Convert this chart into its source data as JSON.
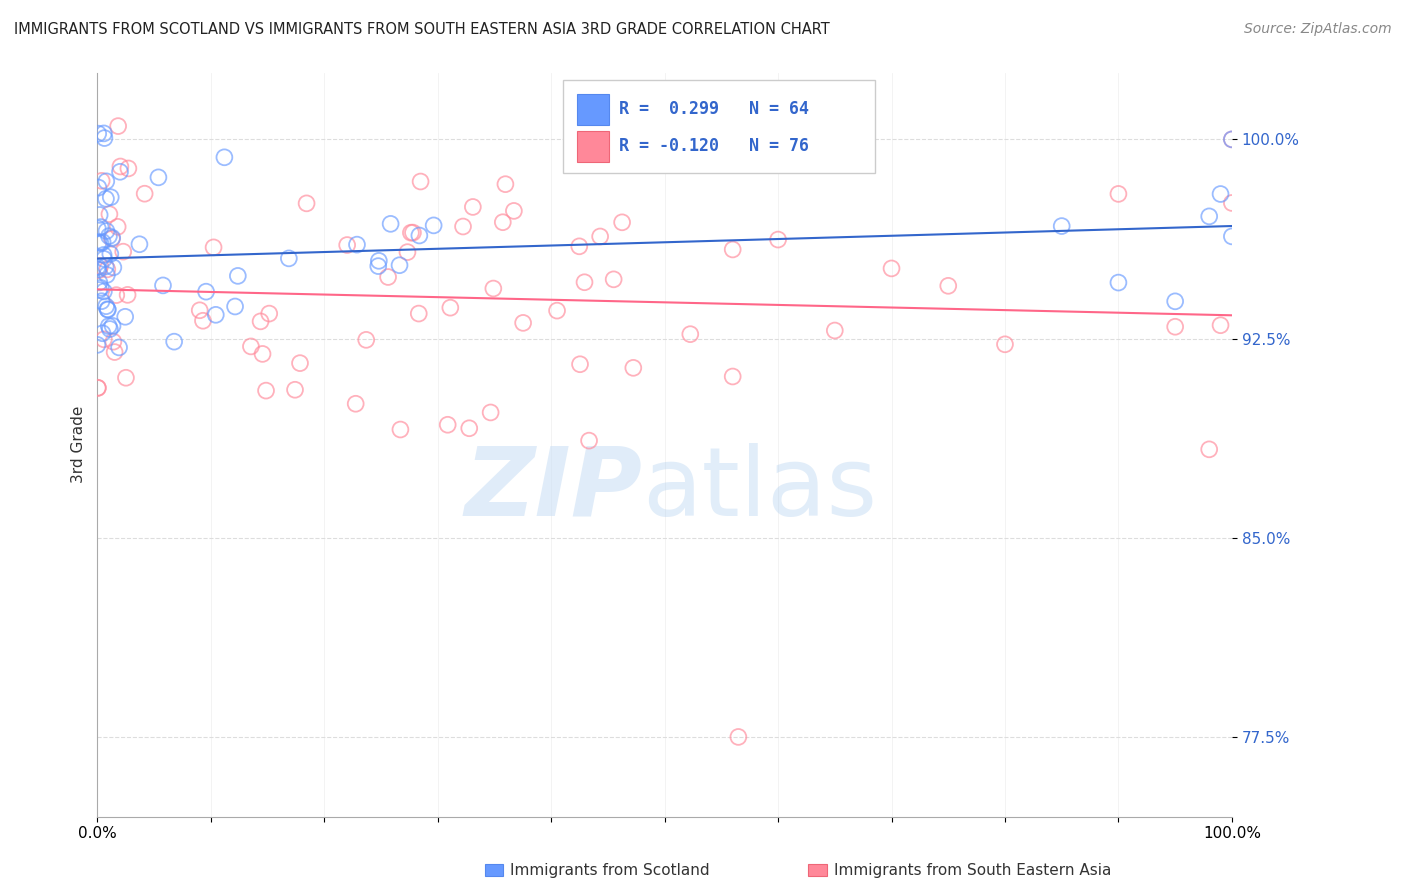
{
  "title": "IMMIGRANTS FROM SCOTLAND VS IMMIGRANTS FROM SOUTH EASTERN ASIA 3RD GRADE CORRELATION CHART",
  "source": "Source: ZipAtlas.com",
  "ylabel": "3rd Grade",
  "y_tick_labels": [
    "77.5%",
    "85.0%",
    "92.5%",
    "100.0%"
  ],
  "y_tick_values": [
    0.775,
    0.85,
    0.925,
    1.0
  ],
  "legend_blue_r": "0.299",
  "legend_blue_n": "64",
  "legend_pink_r": "-0.120",
  "legend_pink_n": "76",
  "legend_label_blue": "Immigrants from Scotland",
  "legend_label_pink": "Immigrants from South Eastern Asia",
  "blue_color": "#6699ff",
  "pink_color": "#ff8899",
  "blue_line_color": "#3366cc",
  "pink_line_color": "#ff6688",
  "background_color": "#ffffff",
  "grid_color": "#dddddd"
}
